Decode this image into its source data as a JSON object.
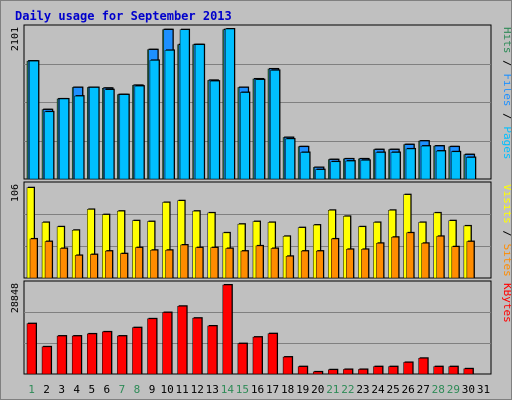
{
  "chart_data": {
    "type": "bar",
    "title": "Daily usage for September 2013",
    "days": [
      "1",
      "2",
      "3",
      "4",
      "5",
      "6",
      "7",
      "8",
      "9",
      "10",
      "11",
      "12",
      "13",
      "14",
      "15",
      "16",
      "17",
      "18",
      "19",
      "20",
      "21",
      "22",
      "23",
      "24",
      "25",
      "26",
      "27",
      "28",
      "29",
      "30",
      "31"
    ],
    "weekend_days": [
      "1",
      "7",
      "8",
      "14",
      "15",
      "21",
      "22",
      "28",
      "29"
    ],
    "panels": [
      {
        "ylabel_parts": [
          {
            "text": "Pages",
            "color": "#00bfff"
          },
          {
            "text": " / ",
            "color": "#000000"
          },
          {
            "text": "Files",
            "color": "#1e90ff"
          },
          {
            "text": " / ",
            "color": "#000000"
          },
          {
            "text": "Hits",
            "color": "#2e8b57"
          }
        ],
        "max_label": "2101",
        "ylim": [
          0,
          2101
        ],
        "series": [
          {
            "name": "Hits",
            "color": "#2e8b57",
            "values": [
              1651,
              971,
              1121,
              1281,
              1281,
              1271,
              1181,
              1311,
              1811,
              2091,
              1881,
              1881,
              1381,
              2091,
              1281,
              1401,
              1541,
              581,
              451,
              161,
              271,
              281,
              281,
              411,
              411,
              481,
              531,
              461,
              451,
              341,
              null
            ]
          },
          {
            "name": "Files",
            "color": "#1e90ff",
            "values": [
              1651,
              971,
              1121,
              1281,
              1281,
              1271,
              1181,
              1311,
              1811,
              2091,
              1881,
              1881,
              1381,
              2091,
              1281,
              1401,
              1541,
              581,
              451,
              161,
              271,
              281,
              281,
              411,
              411,
              481,
              531,
              461,
              451,
              341,
              null
            ]
          },
          {
            "name": "Pages",
            "color": "#00bfff",
            "values": [
              1651,
              941,
              1121,
              1161,
              1281,
              1251,
              1181,
              1301,
              1661,
              1801,
              2091,
              1881,
              1371,
              2101,
              1211,
              1391,
              1521,
              561,
              371,
              131,
              241,
              251,
              261,
              371,
              371,
              421,
              461,
              391,
              381,
              301,
              null
            ]
          }
        ]
      },
      {
        "ylabel_parts": [
          {
            "text": "Sites",
            "color": "#ff8c00"
          },
          {
            "text": " / ",
            "color": "#000000"
          },
          {
            "text": "Visits",
            "color": "#ffff00"
          }
        ],
        "max_label": "106",
        "ylim": [
          0,
          106
        ],
        "series": [
          {
            "name": "Visits",
            "color": "#ffff00",
            "values": [
              104,
              64,
              59,
              55,
              79,
              73,
              77,
              66,
              65,
              87,
              89,
              77,
              75,
              52,
              62,
              65,
              64,
              48,
              58,
              61,
              78,
              71,
              59,
              64,
              78,
              96,
              64,
              75,
              66,
              60,
              null
            ]
          },
          {
            "name": "Sites",
            "color": "#ff8c00",
            "values": [
              45,
              42,
              34,
              26,
              27,
              31,
              28,
              35,
              32,
              32,
              38,
              35,
              35,
              34,
              31,
              37,
              34,
              25,
              31,
              31,
              45,
              33,
              33,
              40,
              47,
              52,
              40,
              48,
              36,
              42,
              null
            ]
          }
        ]
      },
      {
        "ylabel_parts": [
          {
            "text": "KBytes",
            "color": "#ff0000"
          }
        ],
        "max_label": "28848",
        "ylim": [
          0,
          28848
        ],
        "series": [
          {
            "name": "KBytes",
            "color": "#ff0000",
            "values": [
              16322,
              8802,
              12302,
              12302,
              12988,
              13646,
              12302,
              15020,
              17880,
              19920,
              21960,
              18100,
              15560,
              28848,
              9848,
              11960,
              13068,
              5492,
              2380,
              680,
              1370,
              1470,
              1470,
              2380,
              2380,
              3740,
              5092,
              2380,
              2380,
              1680,
              null
            ]
          }
        ]
      }
    ]
  }
}
